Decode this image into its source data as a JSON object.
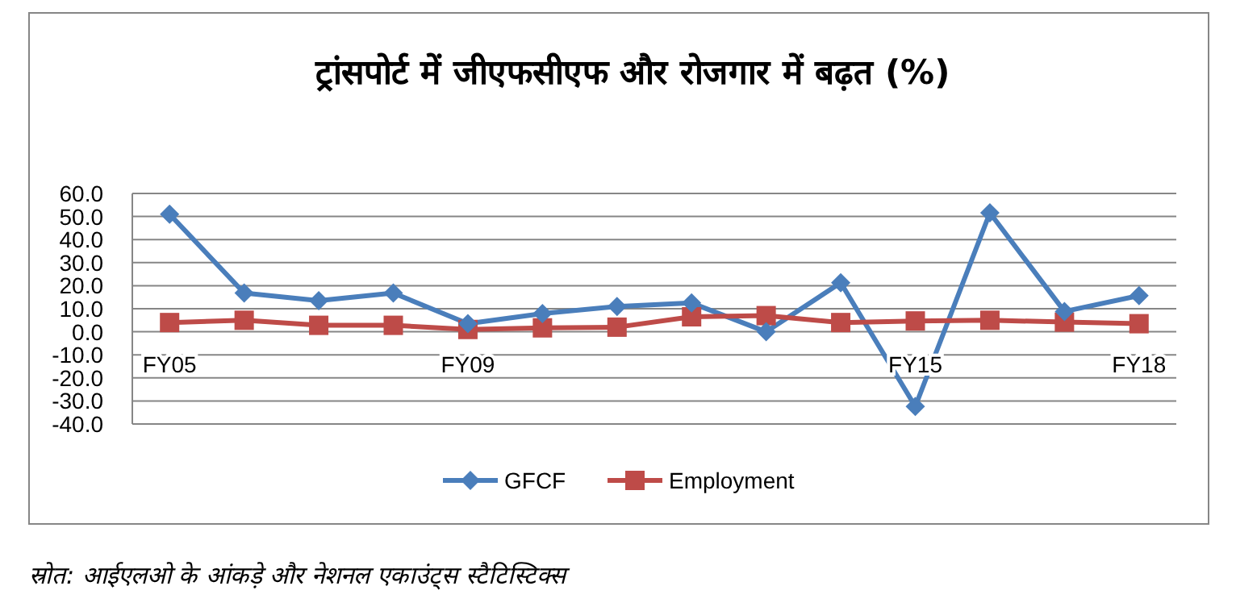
{
  "chart_data": {
    "type": "line",
    "title": "ट्रांसपोर्ट में जीएफसीएफ और रोजगार में बढ़त (%)",
    "annotations": [
      "स्रोत: आईएलओ के आंकड़े और नेशनल एकाउंट्स स्टैटिस्टिक्स"
    ],
    "categories": [
      "FY05",
      null,
      null,
      null,
      "FY09",
      null,
      null,
      null,
      null,
      null,
      "FY15",
      null,
      null,
      "FY18"
    ],
    "series": [
      {
        "name": "GFCF",
        "color": "#4a7ebb",
        "marker": "diamond",
        "values": [
          51,
          16.8,
          13.5,
          16.8,
          3.5,
          7.9,
          11,
          12.5,
          0,
          21.3,
          -32.4,
          51.6,
          8.8,
          15.7
        ]
      },
      {
        "name": "Employment",
        "color": "#be4b48",
        "marker": "square",
        "values": [
          4,
          5,
          2.8,
          2.8,
          1,
          1.7,
          2,
          6.5,
          7,
          4,
          4.7,
          5,
          4.2,
          3.5
        ]
      }
    ],
    "ylim": [
      -40,
      60
    ],
    "yticks": [
      {
        "value": 60,
        "label": "60.0"
      },
      {
        "value": 50,
        "label": "50.0"
      },
      {
        "value": 40,
        "label": "40.0"
      },
      {
        "value": 30,
        "label": "30.0"
      },
      {
        "value": 20,
        "label": "20.0"
      },
      {
        "value": 10,
        "label": "10.0"
      },
      {
        "value": 0,
        "label": "0.0"
      },
      {
        "value": -10,
        "label": "-10.0"
      },
      {
        "value": -20,
        "label": "-20.0"
      },
      {
        "value": -30,
        "label": "-30.0"
      },
      {
        "value": -40,
        "label": "-40.0"
      }
    ],
    "grid": "y",
    "legend": "bottom"
  }
}
